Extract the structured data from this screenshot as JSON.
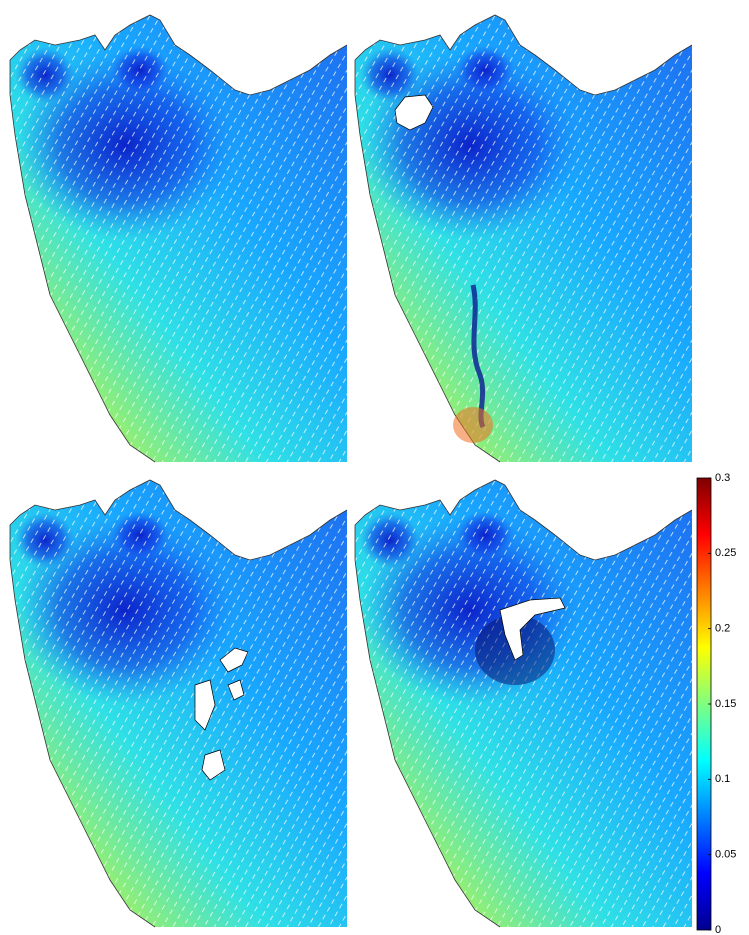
{
  "chart_data": {
    "type": "map",
    "colormap": "jet",
    "clim": [
      0,
      0.3
    ],
    "cticks": [
      0,
      0.05,
      0.1,
      0.15,
      0.2,
      0.25,
      0.3
    ]
  }
}
